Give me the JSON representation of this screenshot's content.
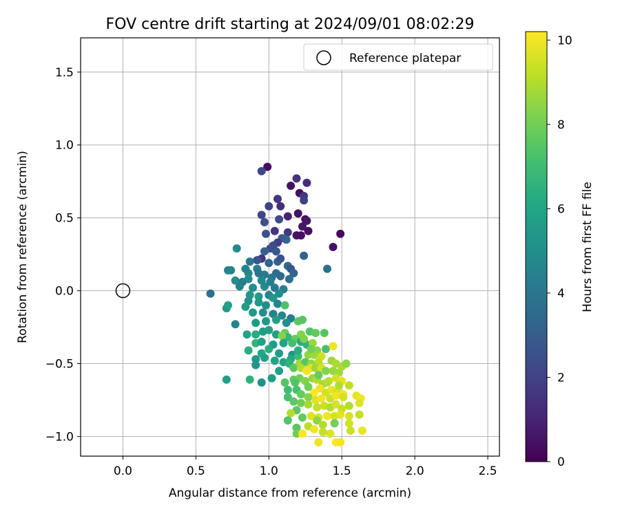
{
  "chart_data": {
    "type": "scatter",
    "title": "FOV centre drift starting at 2024/09/01 08:02:29",
    "xlabel": "Angular distance from reference (arcmin)",
    "ylabel": "Rotation from reference (arcmin)",
    "xlim": [
      -0.29,
      2.58
    ],
    "ylim": [
      -1.135,
      1.735
    ],
    "xticks": [
      0.0,
      0.5,
      1.0,
      1.5,
      2.0,
      2.5
    ],
    "xtick_labels": [
      "0.0",
      "0.5",
      "1.0",
      "1.5",
      "2.0",
      "2.5"
    ],
    "yticks": [
      -1.0,
      -0.5,
      0.0,
      0.5,
      1.0,
      1.5
    ],
    "ytick_labels": [
      "−1.0",
      "−0.5",
      "0.0",
      "0.5",
      "1.0",
      "1.5"
    ],
    "grid": true,
    "legend": {
      "placement": "upper right",
      "entries": [
        {
          "label": "Reference platepar",
          "marker": "open-circle"
        }
      ]
    },
    "reference_point": {
      "x": 0.0,
      "y": 0.0
    },
    "colorbar": {
      "label": "Hours from first FF file",
      "colormap": "viridis",
      "range": [
        0,
        10.2
      ],
      "ticks": [
        0,
        2,
        4,
        6,
        8,
        10
      ],
      "tick_labels": [
        "0",
        "2",
        "4",
        "6",
        "8",
        "10"
      ]
    },
    "points": [
      [
        0.99,
        0.85,
        0.3
      ],
      [
        0.95,
        0.82,
        2.1
      ],
      [
        1.19,
        0.77,
        1.6
      ],
      [
        1.15,
        0.72,
        0.5
      ],
      [
        1.26,
        0.74,
        1.2
      ],
      [
        1.21,
        0.67,
        0.4
      ],
      [
        1.24,
        0.65,
        1.7
      ],
      [
        1.24,
        0.62,
        1.9
      ],
      [
        1.06,
        0.63,
        1.6
      ],
      [
        1.08,
        0.58,
        1.4
      ],
      [
        1.0,
        0.58,
        2.0
      ],
      [
        1.2,
        0.53,
        0.5
      ],
      [
        0.95,
        0.52,
        2.1
      ],
      [
        1.13,
        0.51,
        1.0
      ],
      [
        1.25,
        0.49,
        0.4
      ],
      [
        1.26,
        0.48,
        0.6
      ],
      [
        1.07,
        0.49,
        2.3
      ],
      [
        0.97,
        0.47,
        2.4
      ],
      [
        1.23,
        0.44,
        0.6
      ],
      [
        1.27,
        0.41,
        0.4
      ],
      [
        1.04,
        0.41,
        1.6
      ],
      [
        0.98,
        0.39,
        2.5
      ],
      [
        1.13,
        0.4,
        1.7
      ],
      [
        1.19,
        0.38,
        0.5
      ],
      [
        1.22,
        0.38,
        0.4
      ],
      [
        1.49,
        0.39,
        0.2
      ],
      [
        1.12,
        0.35,
        3.4
      ],
      [
        1.09,
        0.36,
        3.0
      ],
      [
        1.06,
        0.33,
        1.8
      ],
      [
        1.03,
        0.31,
        2.2
      ],
      [
        1.01,
        0.29,
        2.4
      ],
      [
        1.05,
        0.27,
        2.8
      ],
      [
        0.97,
        0.27,
        3.1
      ],
      [
        0.78,
        0.29,
        4.8
      ],
      [
        1.44,
        0.3,
        0.5
      ],
      [
        1.24,
        0.24,
        3.2
      ],
      [
        0.95,
        0.22,
        1.5
      ],
      [
        0.92,
        0.21,
        2.7
      ],
      [
        0.87,
        0.2,
        4.0
      ],
      [
        1.0,
        0.19,
        3.2
      ],
      [
        1.06,
        0.2,
        3.3
      ],
      [
        1.08,
        0.22,
        2.6
      ],
      [
        1.13,
        0.17,
        3.5
      ],
      [
        1.15,
        0.15,
        2.8
      ],
      [
        1.17,
        0.12,
        3.3
      ],
      [
        1.4,
        0.15,
        3.8
      ],
      [
        0.92,
        0.15,
        4.4
      ],
      [
        0.84,
        0.15,
        4.6
      ],
      [
        0.72,
        0.14,
        4.4
      ],
      [
        0.74,
        0.14,
        4.6
      ],
      [
        0.86,
        0.12,
        4.6
      ],
      [
        0.93,
        0.12,
        4.0
      ],
      [
        0.97,
        0.11,
        4.2
      ],
      [
        1.05,
        0.12,
        3.6
      ],
      [
        1.02,
        0.09,
        4.0
      ],
      [
        1.08,
        0.1,
        3.5
      ],
      [
        1.14,
        0.08,
        3.7
      ],
      [
        0.77,
        0.07,
        5.0
      ],
      [
        0.82,
        0.06,
        4.3
      ],
      [
        0.86,
        0.08,
        4.8
      ],
      [
        0.95,
        0.07,
        4.6
      ],
      [
        1.01,
        0.06,
        4.4
      ],
      [
        0.8,
        0.03,
        4.5
      ],
      [
        0.89,
        0.02,
        5.0
      ],
      [
        0.97,
        0.03,
        4.8
      ],
      [
        1.04,
        0.02,
        4.2
      ],
      [
        1.1,
        0.01,
        4.3
      ],
      [
        0.6,
        -0.02,
        3.8
      ],
      [
        0.87,
        -0.03,
        5.3
      ],
      [
        0.93,
        -0.04,
        5.5
      ],
      [
        1.0,
        -0.03,
        4.6
      ],
      [
        1.07,
        -0.02,
        5.0
      ],
      [
        1.03,
        -0.05,
        5.4
      ],
      [
        0.86,
        -0.07,
        5.2
      ],
      [
        0.93,
        -0.08,
        5.4
      ],
      [
        0.98,
        -0.1,
        5.0
      ],
      [
        1.06,
        -0.09,
        4.5
      ],
      [
        1.11,
        -0.1,
        7.3
      ],
      [
        0.71,
        -0.12,
        5.5
      ],
      [
        0.72,
        -0.1,
        5.8
      ],
      [
        0.84,
        -0.11,
        5.6
      ],
      [
        0.89,
        -0.15,
        5.5
      ],
      [
        0.96,
        -0.15,
        5.0
      ],
      [
        1.03,
        -0.16,
        4.5
      ],
      [
        1.09,
        -0.17,
        4.7
      ],
      [
        1.15,
        -0.19,
        4.2
      ],
      [
        0.77,
        -0.23,
        4.5
      ],
      [
        0.91,
        -0.22,
        5.5
      ],
      [
        0.98,
        -0.21,
        5.3
      ],
      [
        1.05,
        -0.2,
        5.7
      ],
      [
        1.12,
        -0.22,
        5.0
      ],
      [
        1.2,
        -0.21,
        7.6
      ],
      [
        1.23,
        -0.2,
        7.5
      ],
      [
        0.85,
        -0.3,
        6.0
      ],
      [
        0.91,
        -0.3,
        6.3
      ],
      [
        0.96,
        -0.28,
        5.6
      ],
      [
        1.0,
        -0.27,
        5.8
      ],
      [
        1.05,
        -0.3,
        5.6
      ],
      [
        1.11,
        -0.29,
        7.8
      ],
      [
        1.13,
        -0.32,
        6.7
      ],
      [
        1.09,
        -0.31,
        8.3
      ],
      [
        1.22,
        -0.3,
        8.3
      ],
      [
        1.28,
        -0.28,
        7.4
      ],
      [
        1.32,
        -0.29,
        7.7
      ],
      [
        1.38,
        -0.29,
        7.5
      ],
      [
        0.91,
        -0.36,
        6.6
      ],
      [
        0.95,
        -0.35,
        5.8
      ],
      [
        1.03,
        -0.37,
        5.5
      ],
      [
        1.1,
        -0.36,
        6.0
      ],
      [
        1.18,
        -0.33,
        7.8
      ],
      [
        1.22,
        -0.35,
        6.2
      ],
      [
        1.26,
        -0.37,
        6.5
      ],
      [
        1.3,
        -0.36,
        8.6
      ],
      [
        1.33,
        -0.41,
        8.3
      ],
      [
        1.39,
        -0.4,
        7.2
      ],
      [
        0.86,
        -0.41,
        6.4
      ],
      [
        0.95,
        -0.43,
        6.0
      ],
      [
        1.0,
        -0.4,
        6.3
      ],
      [
        1.07,
        -0.43,
        5.5
      ],
      [
        1.16,
        -0.44,
        5.3
      ],
      [
        1.2,
        -0.45,
        7.0
      ],
      [
        1.27,
        -0.44,
        8.5
      ],
      [
        1.31,
        -0.44,
        8.7
      ],
      [
        1.36,
        -0.45,
        9.4
      ],
      [
        1.44,
        -0.38,
        10.0
      ],
      [
        0.91,
        -0.47,
        5.5
      ],
      [
        0.97,
        -0.46,
        5.7
      ],
      [
        1.04,
        -0.48,
        5.9
      ],
      [
        1.1,
        -0.49,
        6.0
      ],
      [
        1.15,
        -0.47,
        6.2
      ],
      [
        1.21,
        -0.5,
        8.8
      ],
      [
        1.25,
        -0.49,
        7.5
      ],
      [
        1.29,
        -0.5,
        8.5
      ],
      [
        1.34,
        -0.49,
        9.1
      ],
      [
        1.43,
        -0.48,
        8.7
      ],
      [
        1.46,
        -0.5,
        8.9
      ],
      [
        1.5,
        -0.52,
        8.9
      ],
      [
        1.53,
        -0.5,
        8.5
      ],
      [
        0.91,
        -0.51,
        5.3
      ],
      [
        1.14,
        -0.5,
        6.5
      ],
      [
        1.17,
        -0.53,
        7.6
      ],
      [
        1.22,
        -0.53,
        9.0
      ],
      [
        1.26,
        -0.54,
        9.3
      ],
      [
        1.29,
        -0.53,
        9.7
      ],
      [
        1.32,
        -0.53,
        8.7
      ],
      [
        1.36,
        -0.53,
        9.5
      ],
      [
        1.39,
        -0.55,
        8.3
      ],
      [
        1.44,
        -0.55,
        8.6
      ],
      [
        1.48,
        -0.56,
        8.8
      ],
      [
        1.07,
        -0.55,
        5.8
      ],
      [
        1.02,
        -0.6,
        5.6
      ],
      [
        0.87,
        -0.61,
        6.5
      ],
      [
        0.95,
        -0.63,
        5.0
      ],
      [
        1.11,
        -0.63,
        7.5
      ],
      [
        1.17,
        -0.61,
        7.8
      ],
      [
        1.21,
        -0.6,
        8.0
      ],
      [
        1.25,
        -0.62,
        8.3
      ],
      [
        1.3,
        -0.6,
        8.6
      ],
      [
        1.33,
        -0.61,
        9.0
      ],
      [
        1.37,
        -0.64,
        8.8
      ],
      [
        1.41,
        -0.62,
        9.2
      ],
      [
        1.46,
        -0.6,
        9.5
      ],
      [
        1.5,
        -0.62,
        9.8
      ],
      [
        1.55,
        -0.65,
        9.2
      ],
      [
        1.27,
        -0.66,
        8.0
      ],
      [
        0.71,
        -0.61,
        5.7
      ],
      [
        1.13,
        -0.68,
        7.0
      ],
      [
        1.19,
        -0.68,
        7.2
      ],
      [
        1.31,
        -0.7,
        10.2
      ],
      [
        1.35,
        -0.67,
        10.0
      ],
      [
        1.39,
        -0.7,
        9.5
      ],
      [
        1.43,
        -0.68,
        9.8
      ],
      [
        1.47,
        -0.69,
        9.6
      ],
      [
        1.51,
        -0.71,
        10.1
      ],
      [
        1.13,
        -0.73,
        7.2
      ],
      [
        1.22,
        -0.71,
        7.8
      ],
      [
        1.27,
        -0.73,
        8.3
      ],
      [
        1.32,
        -0.75,
        9.7
      ],
      [
        1.36,
        -0.74,
        10.0
      ],
      [
        1.42,
        -0.74,
        9.4
      ],
      [
        1.46,
        -0.72,
        10.0
      ],
      [
        1.51,
        -0.73,
        9.5
      ],
      [
        1.6,
        -0.72,
        9.8
      ],
      [
        1.63,
        -0.74,
        10.0
      ],
      [
        1.17,
        -0.76,
        7.6
      ],
      [
        1.22,
        -0.77,
        8.0
      ],
      [
        1.27,
        -0.78,
        8.8
      ],
      [
        1.33,
        -0.8,
        9.3
      ],
      [
        1.38,
        -0.79,
        9.4
      ],
      [
        1.42,
        -0.8,
        9.0
      ],
      [
        1.46,
        -0.78,
        9.6
      ],
      [
        1.5,
        -0.81,
        9.3
      ],
      [
        1.55,
        -0.79,
        9.0
      ],
      [
        1.62,
        -0.77,
        9.7
      ],
      [
        1.19,
        -0.82,
        7.6
      ],
      [
        1.15,
        -0.84,
        9.0
      ],
      [
        1.23,
        -0.87,
        7.7
      ],
      [
        1.29,
        -0.86,
        9.7
      ],
      [
        1.34,
        -0.87,
        9.6
      ],
      [
        1.4,
        -0.86,
        10.0
      ],
      [
        1.45,
        -0.86,
        9.5
      ],
      [
        1.49,
        -0.85,
        9.8
      ],
      [
        1.55,
        -0.86,
        9.6
      ],
      [
        1.62,
        -0.85,
        9.3
      ],
      [
        1.13,
        -0.89,
        7.4
      ],
      [
        1.19,
        -0.94,
        7.6
      ],
      [
        1.27,
        -0.93,
        9.2
      ],
      [
        1.33,
        -0.89,
        8.5
      ],
      [
        1.37,
        -0.92,
        9.0
      ],
      [
        1.45,
        -0.91,
        8.0
      ],
      [
        1.55,
        -0.91,
        9.5
      ],
      [
        1.31,
        -0.95,
        10.0
      ],
      [
        1.19,
        -0.98,
        8.0
      ],
      [
        1.23,
        -0.98,
        10.2
      ],
      [
        1.42,
        -0.98,
        9.7
      ],
      [
        1.56,
        -0.96,
        9.4
      ],
      [
        1.64,
        -0.96,
        9.9
      ],
      [
        1.34,
        -1.04,
        10.0
      ],
      [
        1.46,
        -1.04,
        10.2
      ],
      [
        1.49,
        -1.04,
        10.0
      ],
      [
        1.37,
        -0.97,
        9.3
      ],
      [
        1.48,
        -0.65,
        9.0
      ],
      [
        1.26,
        -0.55,
        10.0
      ],
      [
        1.34,
        -0.58,
        7.8
      ],
      [
        1.4,
        -0.63,
        9.0
      ],
      [
        1.18,
        -0.63,
        7.4
      ],
      [
        1.29,
        -0.4,
        8.0
      ],
      [
        1.24,
        -0.33,
        8.2
      ],
      [
        1.2,
        -0.41,
        6.3
      ],
      [
        1.16,
        -0.36,
        7.1
      ]
    ]
  }
}
